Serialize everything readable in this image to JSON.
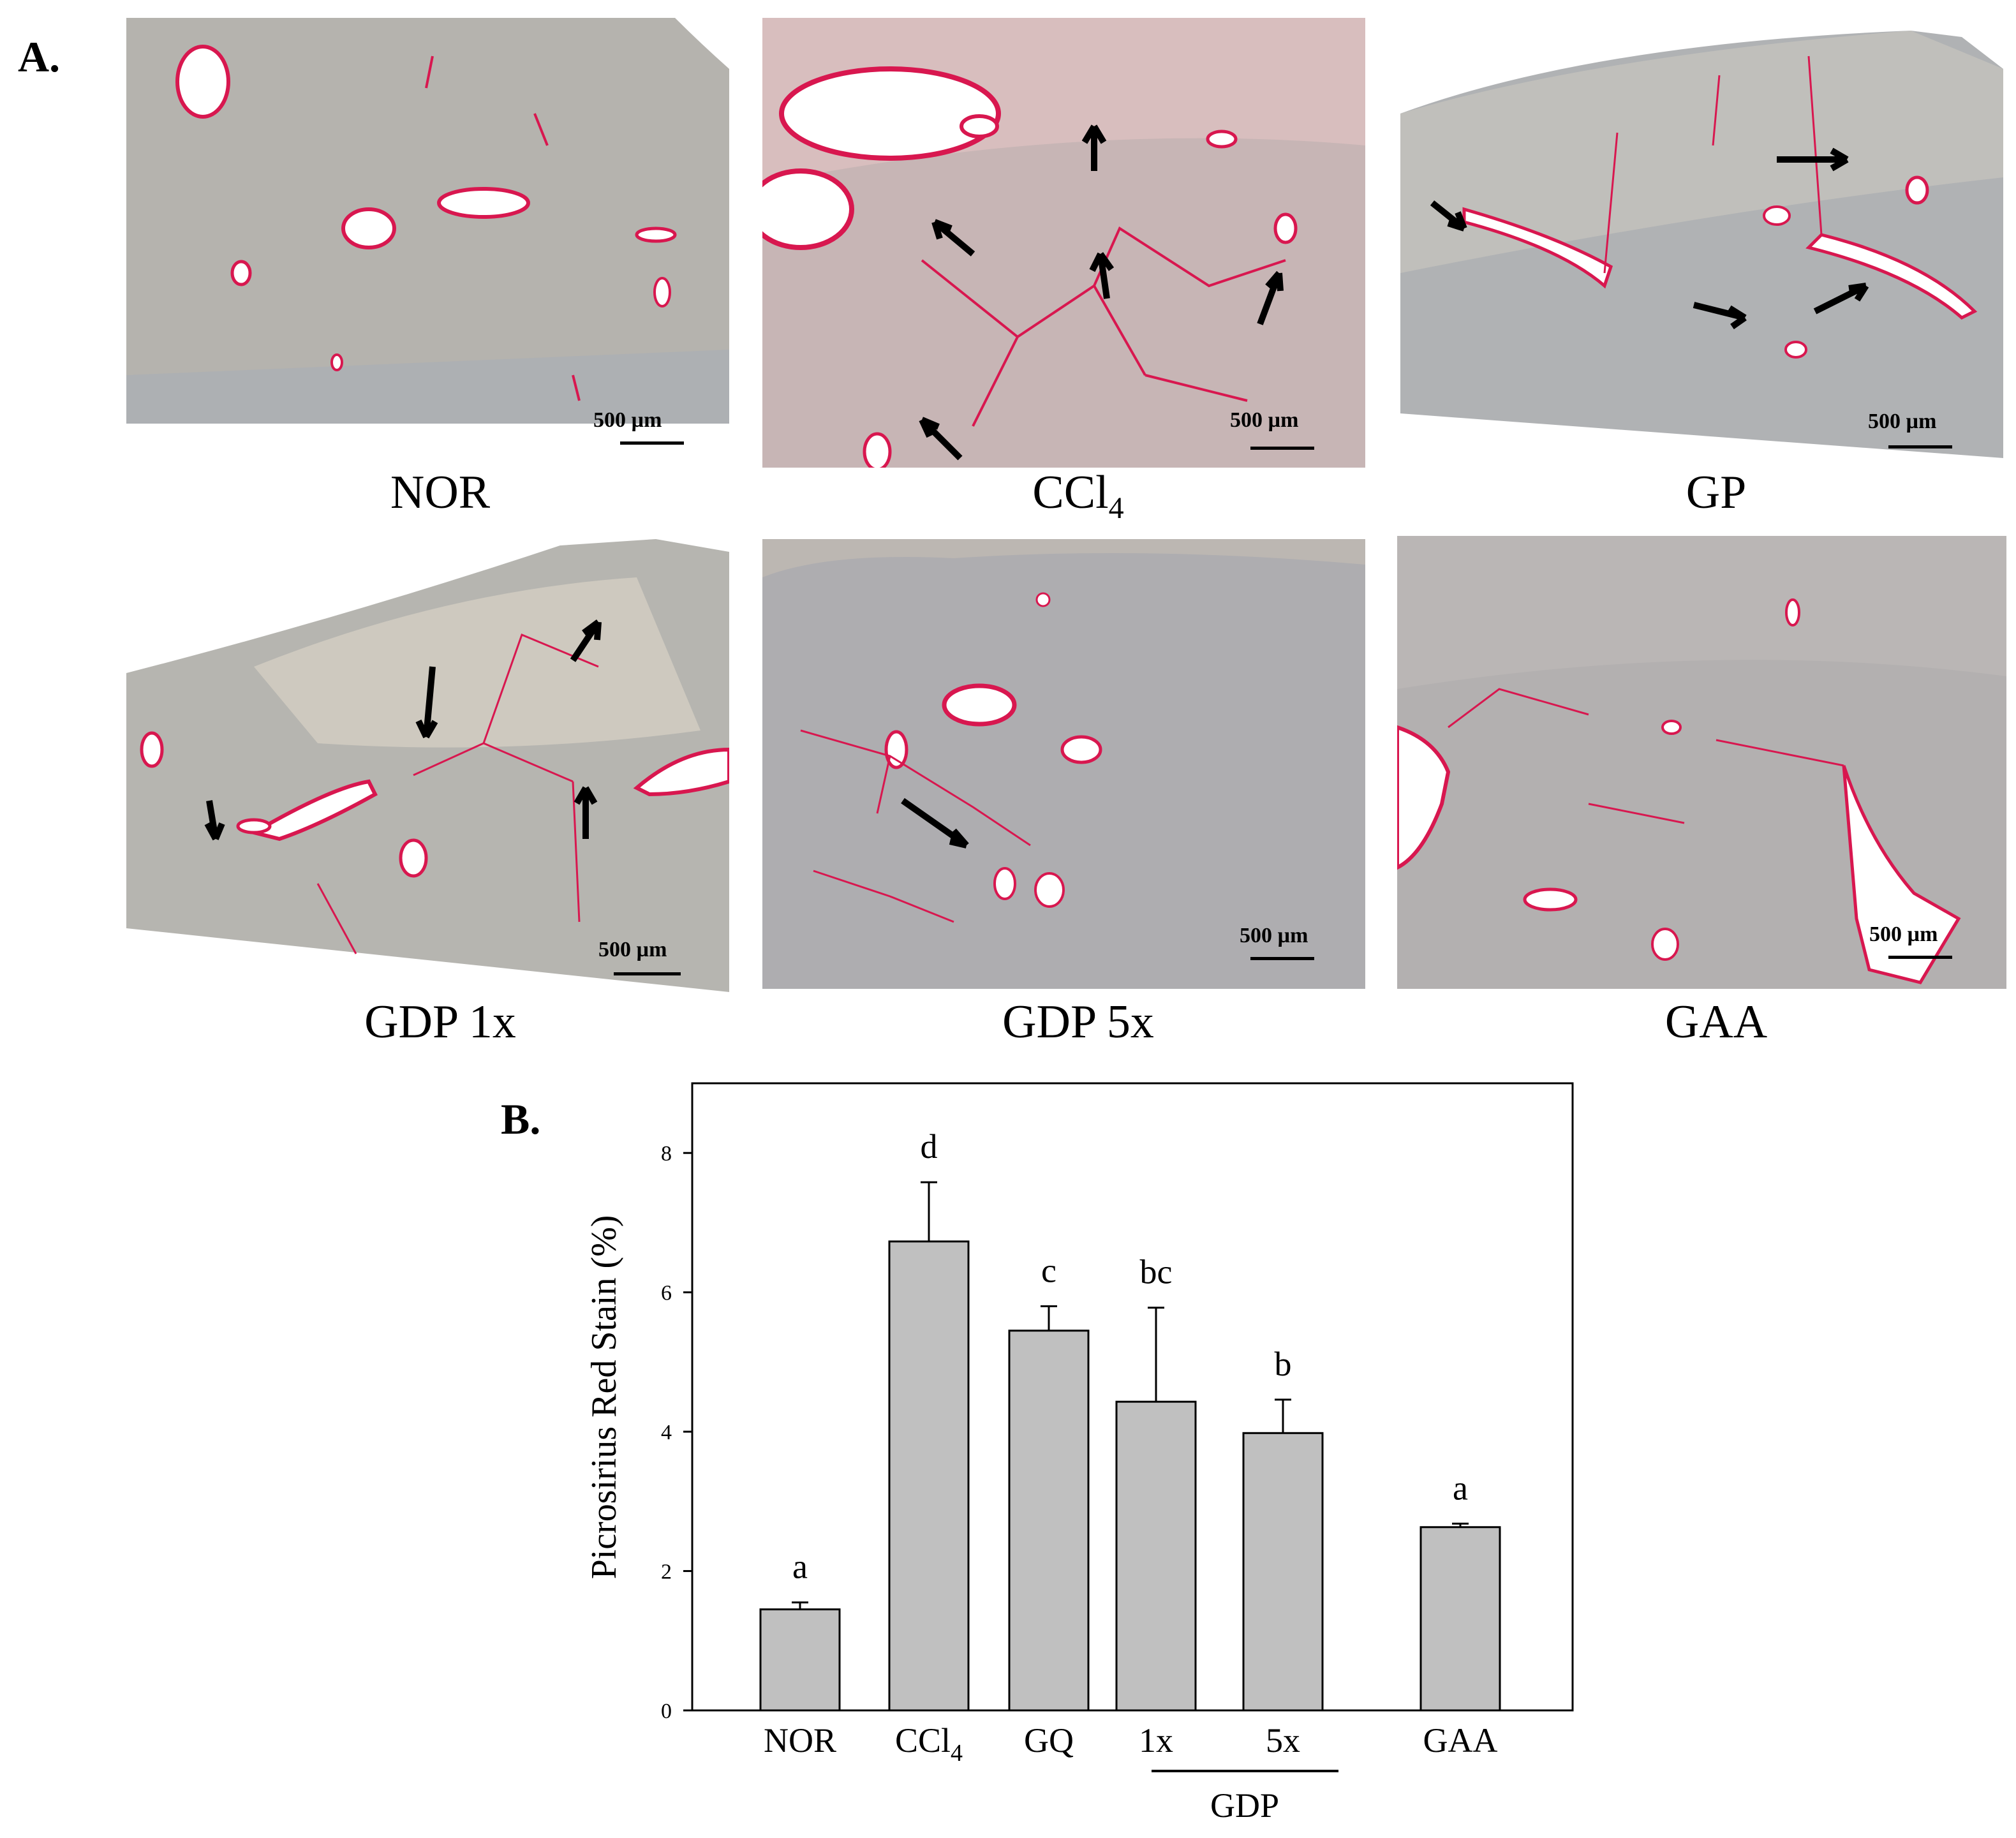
{
  "panel_a": {
    "label": "A.",
    "scale_text": "500 µm",
    "micrographs": [
      {
        "caption": "NOR"
      },
      {
        "caption": "CCl",
        "caption_sub": "4"
      },
      {
        "caption": "GP"
      },
      {
        "caption": "GDP 1x"
      },
      {
        "caption": "GDP 5x"
      },
      {
        "caption": "GAA"
      }
    ]
  },
  "panel_b": {
    "label": "B."
  },
  "colors": {
    "bar_fill": "#c0c0c0",
    "bar_stroke": "#000000",
    "tissue": "#b7b4b0",
    "fiber": "#d8174f"
  },
  "chart_data": {
    "type": "bar",
    "categories": [
      "NOR",
      "CCl4",
      "GQ",
      "1x",
      "5x",
      "GAA"
    ],
    "category_display": [
      {
        "main": "NOR",
        "sub": ""
      },
      {
        "main": "CCl",
        "sub": "4"
      },
      {
        "main": "GQ",
        "sub": ""
      },
      {
        "main": "1x",
        "sub": ""
      },
      {
        "main": "5x",
        "sub": ""
      },
      {
        "main": "GAA",
        "sub": ""
      }
    ],
    "values": [
      1.45,
      6.73,
      5.45,
      4.43,
      3.98,
      2.63
    ],
    "errors": [
      0.1,
      0.85,
      0.35,
      1.35,
      0.48,
      0.05
    ],
    "significance": [
      "a",
      "d",
      "c",
      "bc",
      "b",
      "a"
    ],
    "group_label": "GDP",
    "ylabel": "Picrosirius Red Stain (%)",
    "xlabel": "",
    "ylim": [
      0,
      9
    ],
    "yticks": [
      0,
      2,
      4,
      6,
      8
    ]
  }
}
